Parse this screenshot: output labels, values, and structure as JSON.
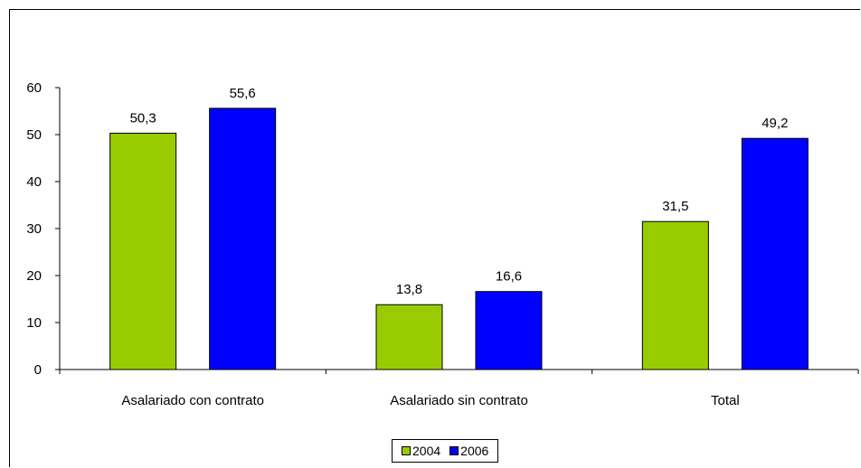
{
  "chart_data": {
    "type": "bar",
    "categories": [
      "Asalariado con contrato",
      "Asalariado sin contrato",
      "Total"
    ],
    "series": [
      {
        "name": "2004",
        "values": [
          50.3,
          13.8,
          31.5
        ],
        "color": "#99cc00",
        "labels": [
          "50,3",
          "13,8",
          "31,5"
        ]
      },
      {
        "name": "2006",
        "values": [
          55.6,
          16.6,
          49.2
        ],
        "color": "#0000ff",
        "labels": [
          "55,6",
          "16,6",
          "49,2"
        ]
      }
    ],
    "yticks": [
      "0",
      "10",
      "20",
      "30",
      "40",
      "50",
      "60"
    ],
    "ylim": [
      0,
      60
    ],
    "grid": false,
    "legend_position": "bottom"
  }
}
